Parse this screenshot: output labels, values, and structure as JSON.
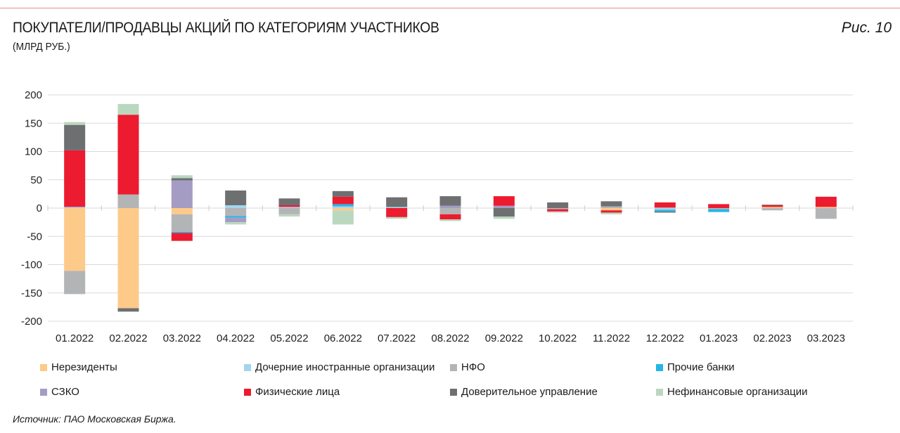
{
  "header": {
    "title": "ПОКУПАТЕЛИ/ПРОДАВЦЫ АКЦИЙ ПО КАТЕГОРИЯМ УЧАСТНИКОВ",
    "subtitle": "(МЛРД РУБ.)",
    "figure": "Рис. 10"
  },
  "footer": {
    "source": "Источник: ПАО Московская Биржа."
  },
  "chart_data": {
    "type": "bar",
    "stacked": true,
    "title": "ПОКУПАТЕЛИ/ПРОДАВЦЫ АКЦИЙ ПО КАТЕГОРИЯМ УЧАСТНИКОВ",
    "ylabel": "(МЛРД РУБ.)",
    "ylim": [
      -200,
      200
    ],
    "yticks": [
      200,
      150,
      100,
      50,
      0,
      -50,
      -100,
      -150,
      -200
    ],
    "grid": true,
    "legend": "bottom",
    "categories": [
      "01.2022",
      "02.2022",
      "03.2022",
      "04.2022",
      "05.2022",
      "06.2022",
      "07.2022",
      "08.2022",
      "09.2022",
      "10.2022",
      "11.2022",
      "12.2022",
      "01.2023",
      "02.2023",
      "03.2023"
    ],
    "series": [
      {
        "name": "Нерезиденты",
        "color": "#FDCA89",
        "values": [
          -111,
          -177,
          -11,
          0,
          0,
          -4,
          0,
          0,
          0,
          0,
          -4,
          0,
          0,
          2,
          2
        ]
      },
      {
        "name": "Дочерние иностранные организации",
        "color": "#A3D5EE",
        "values": [
          2,
          0,
          0,
          5,
          2,
          3,
          2,
          0,
          0,
          0,
          0,
          -3,
          0,
          0,
          0
        ]
      },
      {
        "name": "НФО",
        "color": "#B3B4B6",
        "values": [
          -41,
          24,
          -31,
          -14,
          -11,
          0,
          0,
          -11,
          0,
          -2,
          3,
          1,
          -2,
          -4,
          -19
        ]
      },
      {
        "name": "Прочие банки",
        "color": "#27B4E6",
        "values": [
          0,
          0,
          -2,
          -3,
          0,
          4,
          0,
          0,
          0,
          0,
          0,
          -3,
          -5,
          0,
          0
        ]
      },
      {
        "name": "СЗКО",
        "color": "#A59CC4",
        "values": [
          0,
          0,
          49,
          -8,
          0,
          0,
          0,
          4,
          4,
          0,
          0,
          0,
          0,
          0,
          0
        ]
      },
      {
        "name": "Физические лица",
        "color": "#EC1B30",
        "values": [
          100,
          141,
          -14,
          0,
          3,
          13,
          -16,
          -9,
          17,
          -4,
          -4,
          9,
          7,
          3,
          18
        ]
      },
      {
        "name": "Доверительное управление",
        "color": "#6E6F71",
        "values": [
          45,
          -6,
          4,
          26,
          12,
          10,
          17,
          17,
          -15,
          10,
          9,
          -2,
          0,
          1,
          0
        ]
      },
      {
        "name": "Нефинансовые организации",
        "color": "#BAD8BF",
        "values": [
          5,
          19,
          5,
          -4,
          -4,
          -25,
          -3,
          -3,
          -4,
          -2,
          -3,
          0,
          0,
          0,
          0
        ]
      }
    ]
  }
}
